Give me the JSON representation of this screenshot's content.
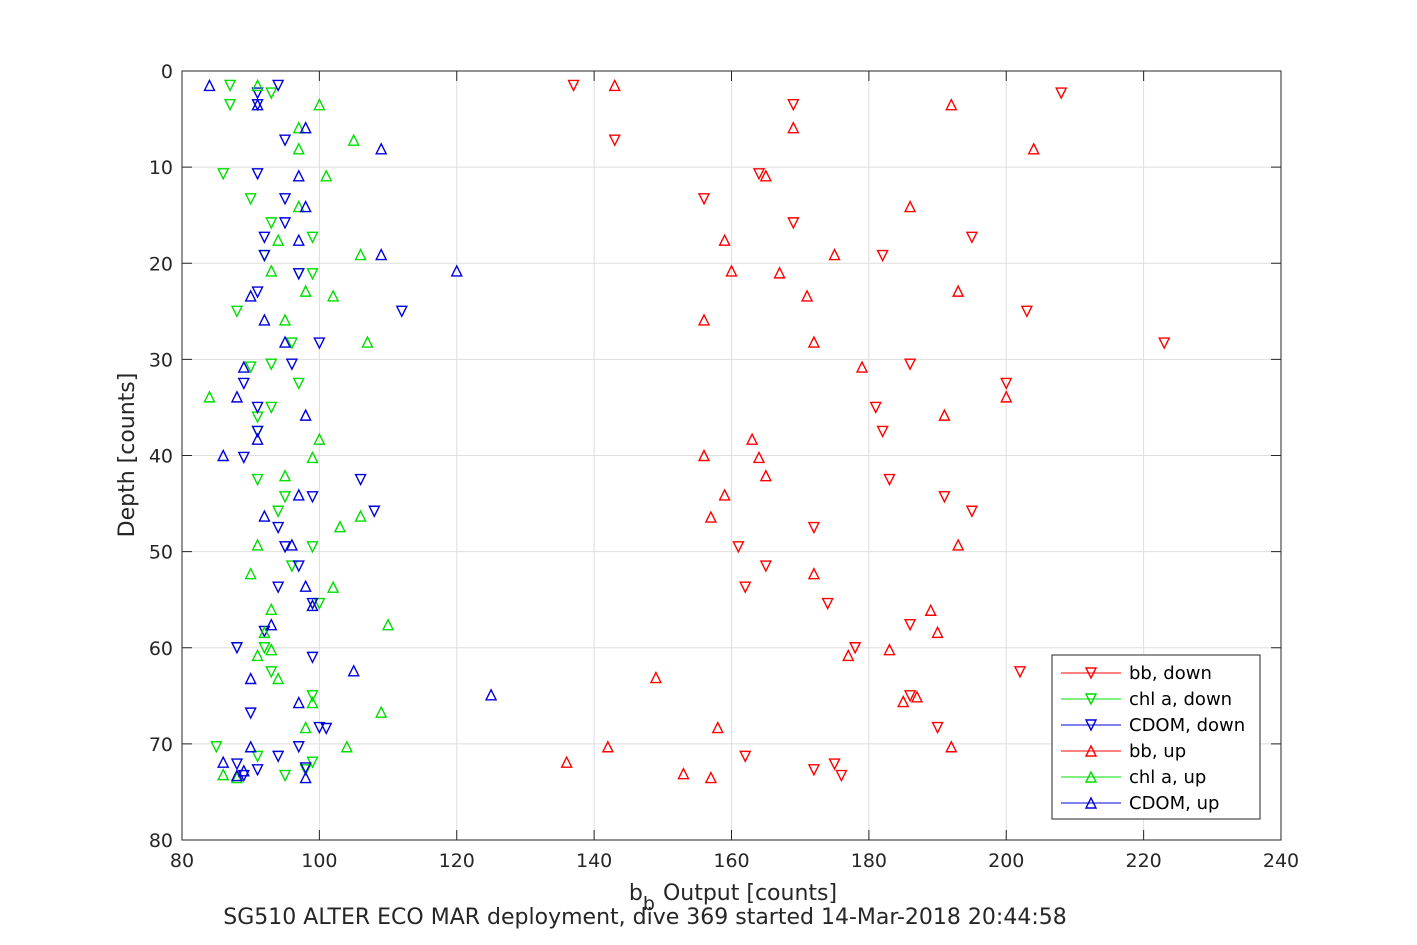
{
  "chart_data": {
    "type": "scatter",
    "xlabel": "Output [counts]",
    "xlabel_symbol": "b",
    "xlabel_subscript": "b",
    "ylabel": "Depth [counts]",
    "caption": "SG510 ALTER ECO MAR deployment, dive 369 started 14-Mar-2018 20:44:58",
    "xlim": [
      80,
      240
    ],
    "ylim": [
      0,
      80
    ],
    "y_reversed": true,
    "xticks": [
      "80",
      "100",
      "120",
      "140",
      "160",
      "180",
      "200",
      "220",
      "240"
    ],
    "yticks": [
      "0",
      "10",
      "20",
      "30",
      "40",
      "50",
      "60",
      "70",
      "80"
    ],
    "grid": true,
    "legend_position": "bottom-right",
    "series": [
      {
        "name": "bb, down",
        "color": "#ff0000",
        "marker": "triangle-down",
        "points": [
          [
            137,
            1.5
          ],
          [
            169,
            3.5
          ],
          [
            208,
            2.3
          ],
          [
            143,
            7.2
          ],
          [
            164,
            10.7
          ],
          [
            156,
            13.3
          ],
          [
            169,
            15.8
          ],
          [
            195,
            17.3
          ],
          [
            182,
            19.2
          ],
          [
            223,
            28.3
          ],
          [
            203,
            25
          ],
          [
            186,
            30.5
          ],
          [
            200,
            32.5
          ],
          [
            181,
            35
          ],
          [
            182,
            37.5
          ],
          [
            183,
            42.5
          ],
          [
            191,
            44.3
          ],
          [
            195,
            45.8
          ],
          [
            172,
            47.5
          ],
          [
            161,
            49.5
          ],
          [
            165,
            51.5
          ],
          [
            162,
            53.7
          ],
          [
            174,
            55.4
          ],
          [
            186,
            57.6
          ],
          [
            178,
            60
          ],
          [
            202,
            62.5
          ],
          [
            186,
            65
          ],
          [
            190,
            68.3
          ],
          [
            162,
            71.3
          ],
          [
            172,
            72.7
          ],
          [
            176,
            73.3
          ],
          [
            175,
            72.1
          ]
        ]
      },
      {
        "name": "chl a, down",
        "color": "#00dd00",
        "marker": "triangle-down",
        "points": [
          [
            87,
            1.5
          ],
          [
            93,
            2.3
          ],
          [
            87,
            3.5
          ],
          [
            86,
            10.7
          ],
          [
            90,
            13.3
          ],
          [
            93,
            15.8
          ],
          [
            99,
            17.3
          ],
          [
            92,
            19.2
          ],
          [
            97,
            21.1
          ],
          [
            99,
            21.1
          ],
          [
            88,
            25
          ],
          [
            96,
            28.3
          ],
          [
            93,
            30.5
          ],
          [
            97,
            32.5
          ],
          [
            93,
            35
          ],
          [
            91,
            37.5
          ],
          [
            91,
            42.5
          ],
          [
            95,
            44.3
          ],
          [
            94,
            45.8
          ],
          [
            99,
            49.5
          ],
          [
            96,
            51.5
          ],
          [
            100,
            55.4
          ],
          [
            92,
            60
          ],
          [
            93,
            62.5
          ],
          [
            99,
            65
          ],
          [
            85,
            70.3
          ],
          [
            91,
            71.3
          ],
          [
            95,
            73.3
          ],
          [
            98,
            72.7
          ],
          [
            90,
            30.8
          ],
          [
            91,
            36
          ],
          [
            99,
            71.9
          ]
        ]
      },
      {
        "name": "CDOM, down",
        "color": "#0000dd",
        "marker": "triangle-down",
        "points": [
          [
            94,
            1.5
          ],
          [
            91,
            2.3
          ],
          [
            91,
            3.5
          ],
          [
            95,
            7.2
          ],
          [
            91,
            10.7
          ],
          [
            95,
            13.3
          ],
          [
            95,
            15.8
          ],
          [
            92,
            17.3
          ],
          [
            92,
            19.2
          ],
          [
            97,
            21.1
          ],
          [
            91,
            23
          ],
          [
            112,
            25
          ],
          [
            100,
            28.3
          ],
          [
            96,
            30.5
          ],
          [
            89,
            32.5
          ],
          [
            91,
            35
          ],
          [
            91,
            37.5
          ],
          [
            89,
            40.2
          ],
          [
            106,
            42.5
          ],
          [
            99,
            44.3
          ],
          [
            108,
            45.8
          ],
          [
            94,
            47.5
          ],
          [
            95,
            49.5
          ],
          [
            97,
            51.5
          ],
          [
            94,
            53.7
          ],
          [
            99,
            55.4
          ],
          [
            92,
            58.3
          ],
          [
            88,
            60
          ],
          [
            99,
            61
          ],
          [
            90,
            66.8
          ],
          [
            100,
            68.3
          ],
          [
            97,
            70.3
          ],
          [
            94,
            71.3
          ],
          [
            88,
            72.1
          ],
          [
            91,
            72.7
          ],
          [
            89,
            73.3
          ],
          [
            98,
            72.5
          ],
          [
            101,
            68.4
          ]
        ]
      },
      {
        "name": "bb, up",
        "color": "#ff0000",
        "marker": "triangle-up",
        "points": [
          [
            143,
            1.5
          ],
          [
            192,
            3.5
          ],
          [
            169,
            5.9
          ],
          [
            204,
            8.1
          ],
          [
            165,
            10.9
          ],
          [
            186,
            14.1
          ],
          [
            159,
            17.6
          ],
          [
            175,
            19.1
          ],
          [
            160,
            20.8
          ],
          [
            167,
            21
          ],
          [
            193,
            22.9
          ],
          [
            171,
            23.4
          ],
          [
            156,
            25.9
          ],
          [
            172,
            28.2
          ],
          [
            179,
            30.8
          ],
          [
            200,
            33.9
          ],
          [
            191,
            35.8
          ],
          [
            163,
            38.3
          ],
          [
            164,
            40.2
          ],
          [
            156,
            40
          ],
          [
            165,
            42.1
          ],
          [
            159,
            44.1
          ],
          [
            157,
            46.4
          ],
          [
            172,
            52.3
          ],
          [
            193,
            49.3
          ],
          [
            189,
            56.1
          ],
          [
            190,
            58.4
          ],
          [
            177,
            60.8
          ],
          [
            149,
            63.1
          ],
          [
            185,
            65.6
          ],
          [
            158,
            68.3
          ],
          [
            142,
            70.3
          ],
          [
            192,
            70.3
          ],
          [
            136,
            71.9
          ],
          [
            153,
            73.1
          ],
          [
            157,
            73.5
          ],
          [
            187,
            65.1
          ],
          [
            183,
            60.2
          ]
        ]
      },
      {
        "name": "chl a, up",
        "color": "#00dd00",
        "marker": "triangle-up",
        "points": [
          [
            91,
            1.5
          ],
          [
            100,
            3.5
          ],
          [
            97,
            5.9
          ],
          [
            105,
            7.2
          ],
          [
            97,
            8.1
          ],
          [
            101,
            10.9
          ],
          [
            97,
            14.1
          ],
          [
            94,
            17.6
          ],
          [
            106,
            19.1
          ],
          [
            93,
            20.8
          ],
          [
            102,
            23.4
          ],
          [
            95,
            25.9
          ],
          [
            107,
            28.2
          ],
          [
            84,
            33.9
          ],
          [
            100,
            38.3
          ],
          [
            99,
            40.2
          ],
          [
            95,
            42.1
          ],
          [
            103,
            47.4
          ],
          [
            106,
            46.3
          ],
          [
            91,
            49.3
          ],
          [
            90,
            52.3
          ],
          [
            102,
            53.7
          ],
          [
            93,
            56
          ],
          [
            110,
            57.6
          ],
          [
            91,
            60.8
          ],
          [
            94,
            63.2
          ],
          [
            99,
            65.7
          ],
          [
            109,
            66.7
          ],
          [
            98,
            68.3
          ],
          [
            104,
            70.3
          ],
          [
            86,
            73.2
          ],
          [
            88,
            73.5
          ],
          [
            93,
            60.2
          ],
          [
            98,
            22.9
          ],
          [
            92,
            58.4
          ]
        ]
      },
      {
        "name": "CDOM, up",
        "color": "#0000dd",
        "marker": "triangle-up",
        "points": [
          [
            84,
            1.5
          ],
          [
            91,
            3.5
          ],
          [
            98,
            5.9
          ],
          [
            109,
            8.1
          ],
          [
            97,
            10.9
          ],
          [
            98,
            14.1
          ],
          [
            97,
            17.6
          ],
          [
            109,
            19.1
          ],
          [
            120,
            20.8
          ],
          [
            90,
            23.4
          ],
          [
            92,
            25.9
          ],
          [
            95,
            28.2
          ],
          [
            89,
            30.8
          ],
          [
            88,
            33.9
          ],
          [
            98,
            35.8
          ],
          [
            91,
            38.3
          ],
          [
            86,
            40
          ],
          [
            97,
            44.1
          ],
          [
            92,
            46.3
          ],
          [
            96,
            49.3
          ],
          [
            98,
            53.6
          ],
          [
            99,
            55.6
          ],
          [
            93,
            57.6
          ],
          [
            90,
            63.2
          ],
          [
            125,
            64.9
          ],
          [
            97,
            65.7
          ],
          [
            90,
            70.3
          ],
          [
            86,
            71.9
          ],
          [
            89,
            72.8
          ],
          [
            98,
            73.5
          ],
          [
            105,
            62.4
          ],
          [
            88,
            73.3
          ]
        ]
      }
    ]
  }
}
